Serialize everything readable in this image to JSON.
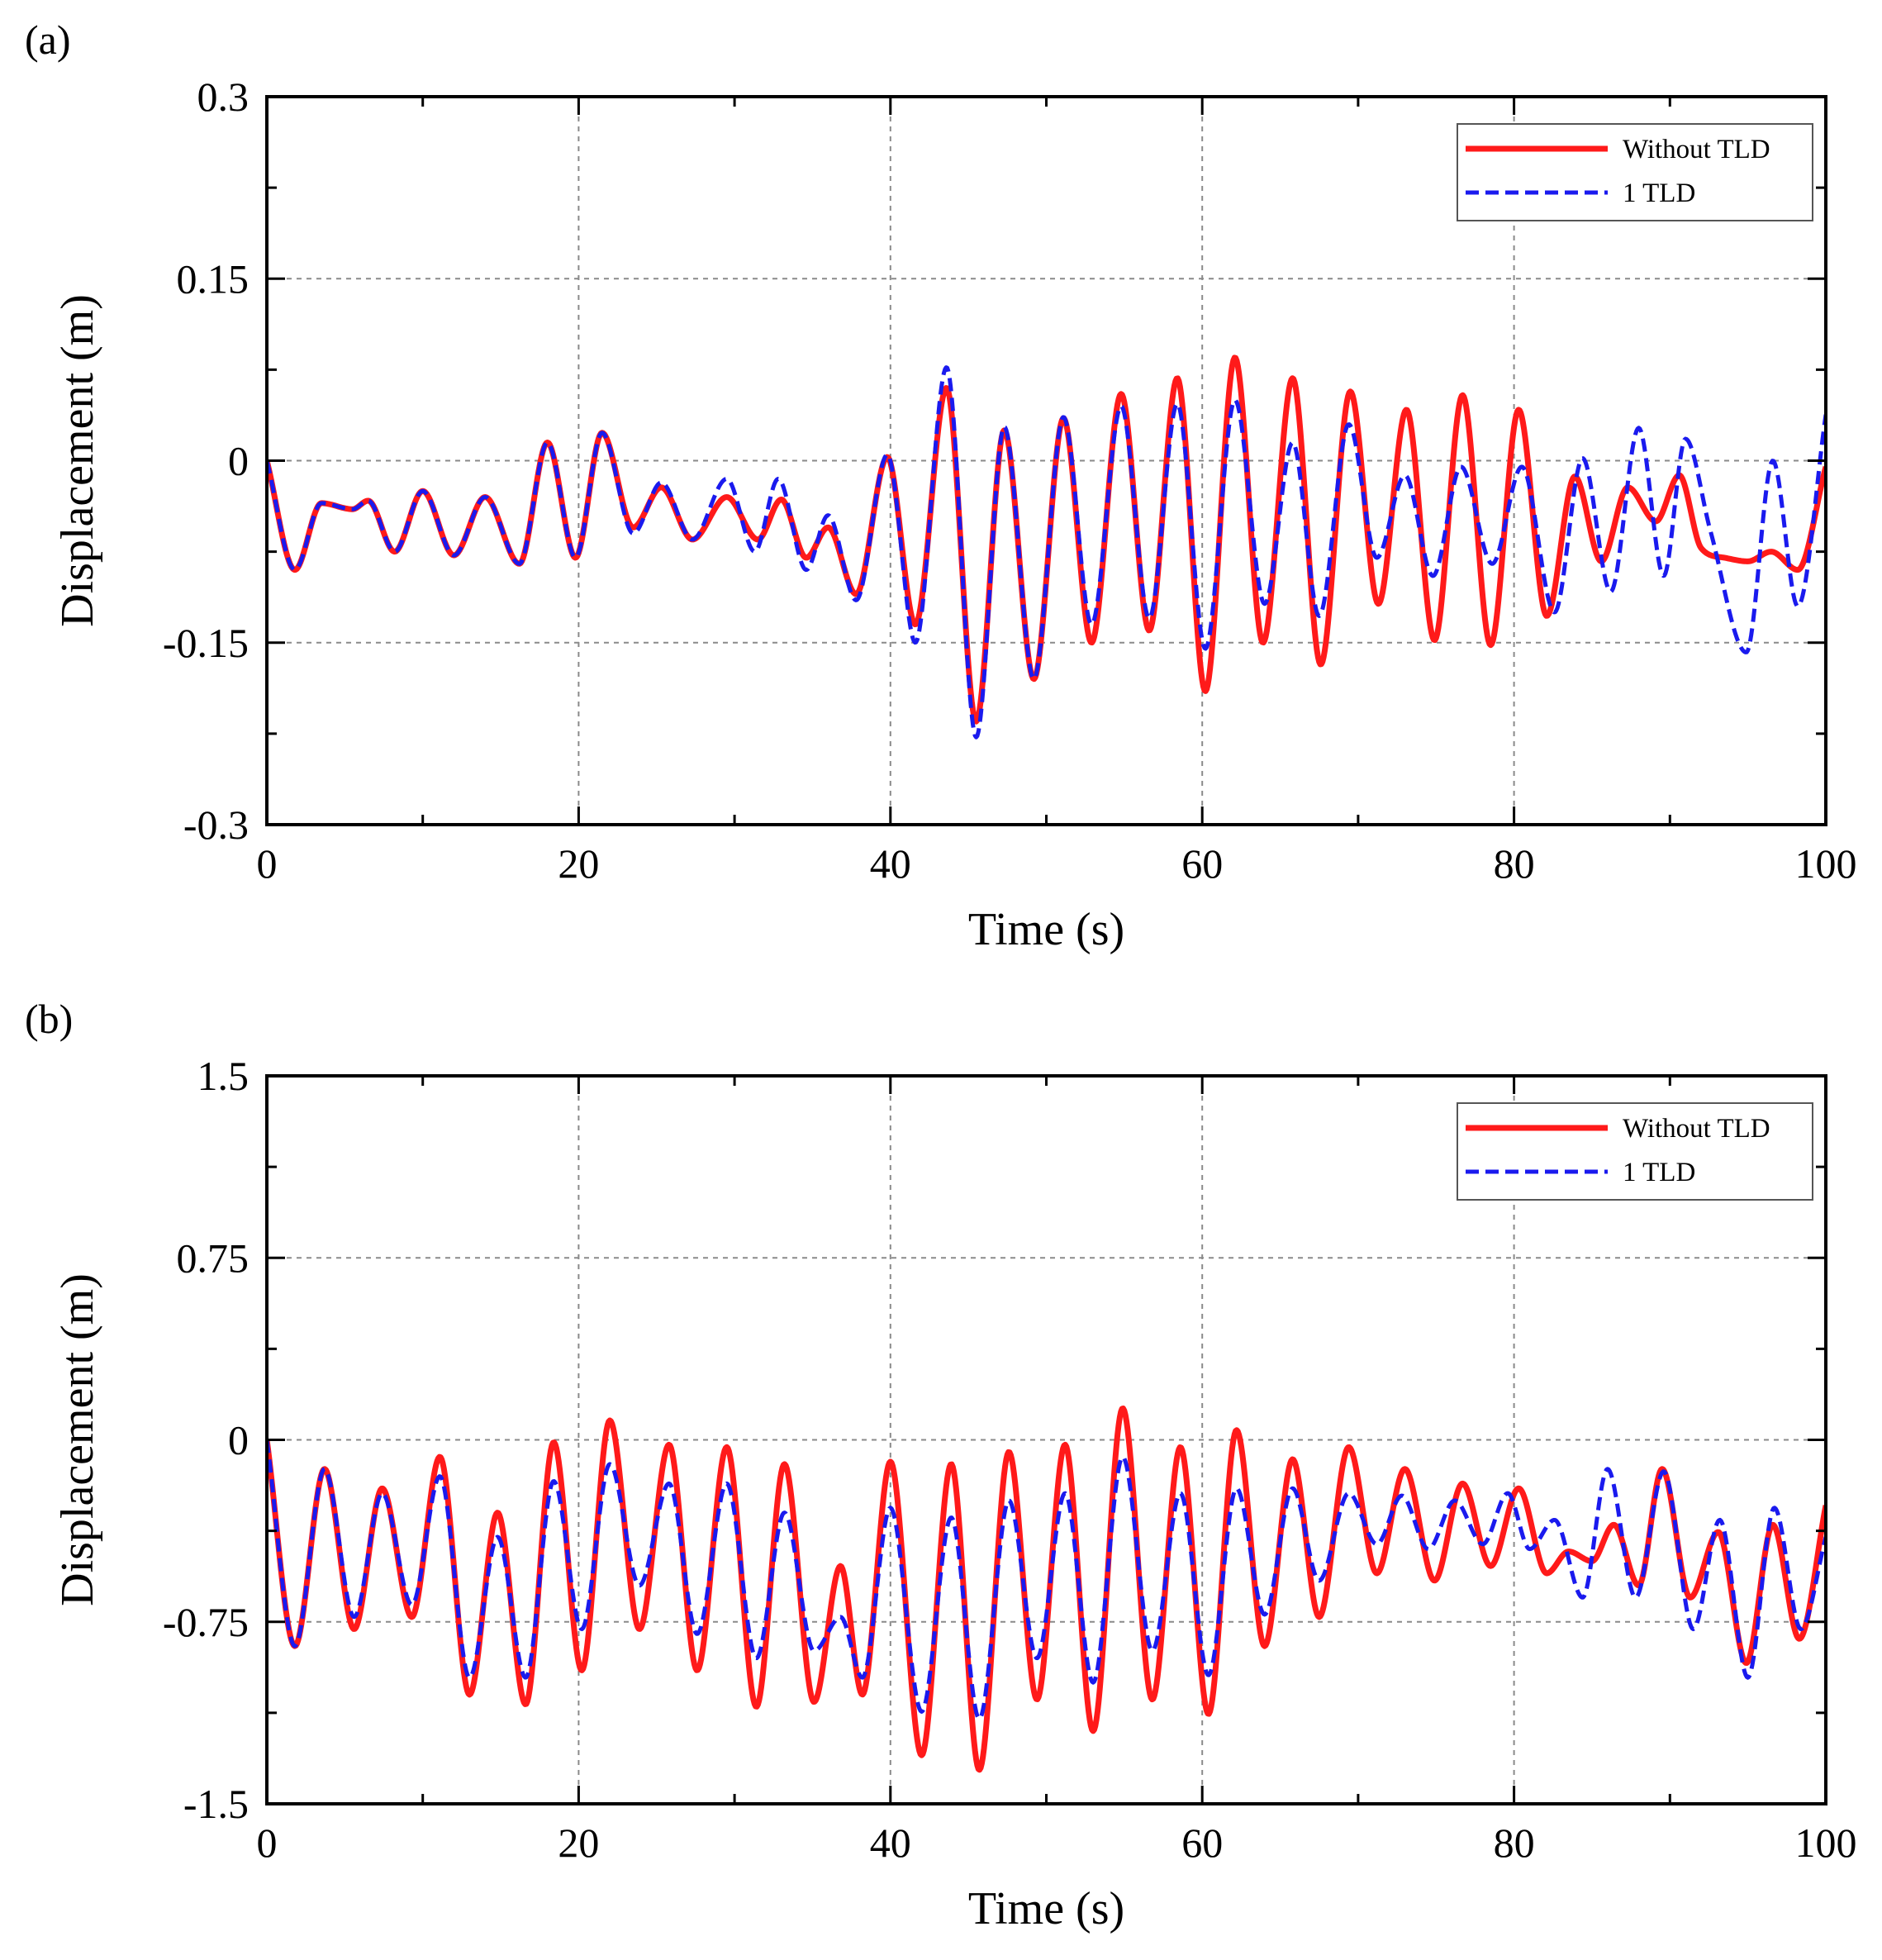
{
  "chart_data": [
    {
      "type": "line",
      "panel_label": "(a)",
      "xlabel": "Time (s)",
      "ylabel": "Displacement (m)",
      "xlim": [
        0,
        100
      ],
      "ylim": [
        -0.3,
        0.3
      ],
      "xticks": [
        0,
        20,
        40,
        60,
        80,
        100
      ],
      "xtick_labels": [
        "0",
        "20",
        "40",
        "60",
        "80",
        "100"
      ],
      "yticks": [
        0.3,
        0.15,
        0,
        -0.15,
        -0.3
      ],
      "ytick_labels": [
        "0.3",
        "0.15",
        "0",
        "-0.15",
        "-0.3"
      ],
      "grid": true,
      "legend_position": "top-right",
      "series": [
        {
          "name": "Without TLD",
          "color": "#ff1a1a",
          "style": "solid",
          "x": [
            0,
            1.8,
            3.5,
            5.5,
            6.5,
            8.2,
            10,
            12,
            14,
            16.2,
            18,
            19.8,
            21.5,
            23.5,
            25.3,
            27.3,
            29.5,
            31.5,
            33,
            34.6,
            36,
            37.8,
            39.8,
            41.6,
            43.6,
            45.5,
            47.3,
            49.2,
            51.1,
            52.9,
            54.8,
            56.6,
            58.4,
            60.2,
            62.1,
            63.9,
            65.8,
            67.6,
            69.5,
            71.3,
            73.1,
            74.9,
            76.7,
            78.5,
            80.3,
            82.1,
            83.9,
            85.6,
            87.3,
            89.1,
            90.6,
            92.0,
            93.5,
            95.0,
            96.5,
            98.2,
            100
          ],
          "values": [
            0,
            -0.09,
            -0.035,
            -0.04,
            -0.033,
            -0.075,
            -0.025,
            -0.078,
            -0.03,
            -0.085,
            0.015,
            -0.08,
            0.023,
            -0.055,
            -0.022,
            -0.065,
            -0.03,
            -0.065,
            -0.032,
            -0.08,
            -0.055,
            -0.11,
            0.003,
            -0.135,
            0.06,
            -0.215,
            0.025,
            -0.18,
            0.035,
            -0.15,
            0.055,
            -0.14,
            0.068,
            -0.19,
            0.085,
            -0.15,
            0.068,
            -0.168,
            0.057,
            -0.118,
            0.042,
            -0.148,
            0.054,
            -0.152,
            0.042,
            -0.128,
            -0.013,
            -0.083,
            -0.022,
            -0.05,
            -0.012,
            -0.072,
            -0.08,
            -0.083,
            -0.075,
            -0.09,
            -0.005
          ]
        },
        {
          "name": "1 TLD",
          "color": "#1a1aee",
          "style": "dashed",
          "x": [
            0,
            1.8,
            3.5,
            5.5,
            6.5,
            8.2,
            10,
            12,
            14,
            16.2,
            18,
            19.8,
            21.5,
            23.5,
            25.3,
            27.3,
            29.5,
            31.3,
            32.8,
            34.6,
            36,
            37.8,
            39.8,
            41.6,
            43.6,
            45.5,
            47.3,
            49.2,
            51.1,
            52.9,
            54.8,
            56.6,
            58.4,
            60.2,
            62.1,
            64.0,
            65.8,
            67.5,
            69.4,
            71.2,
            73.0,
            74.8,
            76.6,
            78.6,
            80.5,
            82.6,
            84.4,
            86.2,
            88.0,
            89.6,
            91.0,
            92.6,
            94.9,
            96.6,
            98.2,
            100
          ],
          "values": [
            0,
            -0.09,
            -0.035,
            -0.04,
            -0.033,
            -0.075,
            -0.025,
            -0.078,
            -0.03,
            -0.085,
            0.015,
            -0.08,
            0.023,
            -0.06,
            -0.018,
            -0.065,
            -0.015,
            -0.075,
            -0.015,
            -0.09,
            -0.045,
            -0.115,
            0.005,
            -0.15,
            0.077,
            -0.228,
            0.028,
            -0.18,
            0.036,
            -0.135,
            0.045,
            -0.13,
            0.047,
            -0.155,
            0.05,
            -0.118,
            0.015,
            -0.128,
            0.03,
            -0.08,
            -0.012,
            -0.095,
            -0.005,
            -0.085,
            -0.005,
            -0.125,
            0.002,
            -0.108,
            0.027,
            -0.095,
            0.018,
            -0.058,
            -0.158,
            0.0,
            -0.12,
            0.038
          ]
        }
      ]
    },
    {
      "type": "line",
      "panel_label": "(b)",
      "xlabel": "Time (s)",
      "ylabel": "Displacement (m)",
      "xlim": [
        0,
        100
      ],
      "ylim": [
        -1.5,
        1.5
      ],
      "xticks": [
        0,
        20,
        40,
        60,
        80,
        100
      ],
      "xtick_labels": [
        "0",
        "20",
        "40",
        "60",
        "80",
        "100"
      ],
      "yticks": [
        1.5,
        0.75,
        0,
        -0.75,
        -1.5
      ],
      "ytick_labels": [
        "1.5",
        "0.75",
        "0",
        "-0.75",
        "-1.5"
      ],
      "grid": true,
      "legend_position": "top-right",
      "series": [
        {
          "name": "Without TLD",
          "color": "#ff1a1a",
          "style": "solid",
          "x": [
            0,
            1.8,
            3.7,
            5.6,
            7.4,
            9.3,
            11.1,
            13.0,
            14.8,
            16.6,
            18.4,
            20.2,
            22.0,
            23.9,
            25.8,
            27.6,
            29.5,
            31.4,
            33.2,
            35.1,
            36.8,
            38.2,
            40.0,
            42.0,
            43.9,
            45.7,
            47.6,
            49.4,
            51.2,
            53.0,
            54.9,
            56.8,
            58.6,
            60.4,
            62.2,
            64.0,
            65.8,
            67.5,
            69.4,
            71.2,
            73.0,
            74.9,
            76.7,
            78.5,
            80.3,
            82.1,
            83.5,
            85.0,
            86.4,
            88.0,
            89.5,
            91.3,
            93.1,
            94.9,
            96.6,
            98.3,
            100
          ],
          "values": [
            0,
            -0.85,
            -0.12,
            -0.78,
            -0.2,
            -0.73,
            -0.07,
            -1.05,
            -0.3,
            -1.09,
            -0.01,
            -0.95,
            0.08,
            -0.78,
            -0.02,
            -0.95,
            -0.03,
            -1.1,
            -0.1,
            -1.08,
            -0.52,
            -1.05,
            -0.09,
            -1.3,
            -0.1,
            -1.36,
            -0.05,
            -1.07,
            -0.02,
            -1.2,
            0.13,
            -1.07,
            -0.03,
            -1.13,
            0.04,
            -0.85,
            -0.08,
            -0.73,
            -0.03,
            -0.55,
            -0.12,
            -0.58,
            -0.18,
            -0.52,
            -0.2,
            -0.55,
            -0.46,
            -0.5,
            -0.35,
            -0.6,
            -0.12,
            -0.65,
            -0.38,
            -0.92,
            -0.35,
            -0.82,
            -0.27
          ]
        },
        {
          "name": "1 TLD",
          "color": "#1a1aee",
          "style": "dashed",
          "x": [
            0,
            1.8,
            3.7,
            5.6,
            7.4,
            9.3,
            11.1,
            13.0,
            14.8,
            16.6,
            18.4,
            20.2,
            22.0,
            23.9,
            25.8,
            27.6,
            29.5,
            31.4,
            33.2,
            35.1,
            36.8,
            38.2,
            40.0,
            42.0,
            43.9,
            45.7,
            47.6,
            49.4,
            51.2,
            53.0,
            54.9,
            56.8,
            58.6,
            60.4,
            62.2,
            64.0,
            65.8,
            67.5,
            69.4,
            71.2,
            72.8,
            74.5,
            76.2,
            78.0,
            79.6,
            81.0,
            82.6,
            84.4,
            86.0,
            87.8,
            89.6,
            91.5,
            93.2,
            95.0,
            96.7,
            98.4,
            100
          ],
          "values": [
            0,
            -0.85,
            -0.12,
            -0.73,
            -0.22,
            -0.68,
            -0.15,
            -0.98,
            -0.4,
            -0.98,
            -0.17,
            -0.78,
            -0.1,
            -0.6,
            -0.18,
            -0.8,
            -0.18,
            -0.9,
            -0.3,
            -0.87,
            -0.73,
            -0.98,
            -0.28,
            -1.12,
            -0.32,
            -1.15,
            -0.25,
            -0.9,
            -0.22,
            -1.0,
            -0.07,
            -0.87,
            -0.22,
            -0.97,
            -0.2,
            -0.72,
            -0.2,
            -0.58,
            -0.22,
            -0.43,
            -0.23,
            -0.45,
            -0.25,
            -0.43,
            -0.22,
            -0.45,
            -0.33,
            -0.65,
            -0.12,
            -0.65,
            -0.13,
            -0.78,
            -0.33,
            -0.98,
            -0.28,
            -0.78,
            -0.4
          ]
        }
      ]
    }
  ]
}
